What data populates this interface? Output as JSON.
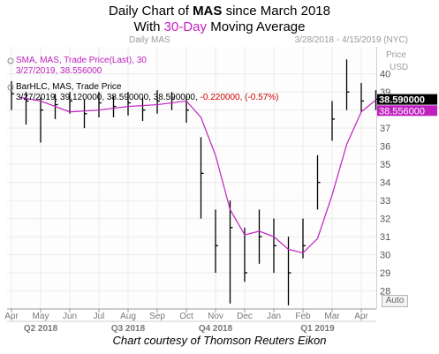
{
  "title_line1": {
    "pre": "Daily Chart of ",
    "ticker": "MAS",
    "post": " since March 2018"
  },
  "title_line2": {
    "pre": "With ",
    "highlight": "30-Day",
    "post": " Moving Average"
  },
  "panel_label": "Daily MAS",
  "date_range": "3/28/2018 - 4/15/2019 (NYC)",
  "price_header": "Price",
  "currency_header": "USD",
  "sma_legend": {
    "line1": "SMA, MAS, Trade Price(Last), 30",
    "line2": "3/27/2019, 38.556000"
  },
  "bar_legend": {
    "line1": "BarHLC, MAS, Trade Price",
    "line2_prefix": "3/27/2019, 39.120000, 38.590000, 38.590000, ",
    "line2_change": "-0.220000, (-0.57%)"
  },
  "last_price_label": "38.590000",
  "sma_price_label": "38.556000",
  "auto_button": "Auto",
  "credit": "Chart courtesy of Thomson Reuters Eikon",
  "colors": {
    "price": "#000000",
    "sma": "#c020c0",
    "change": "#d00000",
    "sma_tag": "#c020c0",
    "price_tag": "#000000"
  },
  "chart_data": {
    "type": "bar",
    "subtype": "HLC bars with moving-average line",
    "y_ticks": [
      28,
      29,
      30,
      31,
      32,
      33,
      34,
      35,
      36,
      37,
      38,
      39,
      40
    ],
    "ylim": [
      27.0,
      41.5
    ],
    "x_month_labels": [
      "Apr",
      "May",
      "Jun",
      "Jul",
      "Aug",
      "Sep",
      "Oct",
      "Nov",
      "Dec",
      "Jan",
      "Feb",
      "Mar",
      "Apr"
    ],
    "x_quarter_labels": [
      "Q2 2018",
      "Q3 2018",
      "Q4 2018",
      "Q1 2019"
    ],
    "grid": true,
    "series": [
      {
        "name": "BarHLC, MAS, Trade Price",
        "x": [
          0,
          0.5,
          1,
          1.5,
          2,
          2.5,
          3,
          3.5,
          4,
          4.5,
          5,
          5.5,
          6,
          6.5,
          7,
          7.5,
          8,
          8.5,
          9,
          9.5,
          10,
          10.5,
          11,
          11.5,
          12,
          12.5
        ],
        "close": [
          38.9,
          38.5,
          38.0,
          38.3,
          38.5,
          37.8,
          38.4,
          38.2,
          38.4,
          38.0,
          38.5,
          38.6,
          38.0,
          34.5,
          30.5,
          31.5,
          29.0,
          31.0,
          30.5,
          29.0,
          30.5,
          34.0,
          37.5,
          39.0,
          38.5,
          38.6
        ],
        "high": [
          39.6,
          39.0,
          38.7,
          38.9,
          39.0,
          38.6,
          39.0,
          38.8,
          39.0,
          38.7,
          39.1,
          39.0,
          38.8,
          36.5,
          32.5,
          33.0,
          31.5,
          32.5,
          32.0,
          31.0,
          32.0,
          35.5,
          38.5,
          40.8,
          39.5,
          39.1
        ],
        "low": [
          38.0,
          37.2,
          36.2,
          37.5,
          37.8,
          37.0,
          37.6,
          37.6,
          37.7,
          37.4,
          37.8,
          38.0,
          37.3,
          32.0,
          29.0,
          27.3,
          28.5,
          29.5,
          29.0,
          27.2,
          29.8,
          32.5,
          36.3,
          38.0,
          37.9,
          38.0
        ]
      },
      {
        "name": "SMA, MAS, Trade Price(Last), 30",
        "x": [
          0.3,
          1,
          2,
          3,
          4,
          5,
          6,
          6.5,
          7,
          7.5,
          8,
          8.5,
          9,
          9.5,
          10,
          10.5,
          11,
          11.5,
          12,
          12.5
        ],
        "values": [
          38.7,
          38.5,
          37.9,
          38.0,
          38.2,
          38.3,
          38.5,
          37.6,
          35.5,
          32.5,
          31.1,
          31.3,
          31.0,
          30.3,
          30.1,
          30.9,
          33.3,
          36.1,
          37.9,
          38.56
        ]
      }
    ],
    "last_close": 38.59,
    "last_sma": 38.556
  }
}
